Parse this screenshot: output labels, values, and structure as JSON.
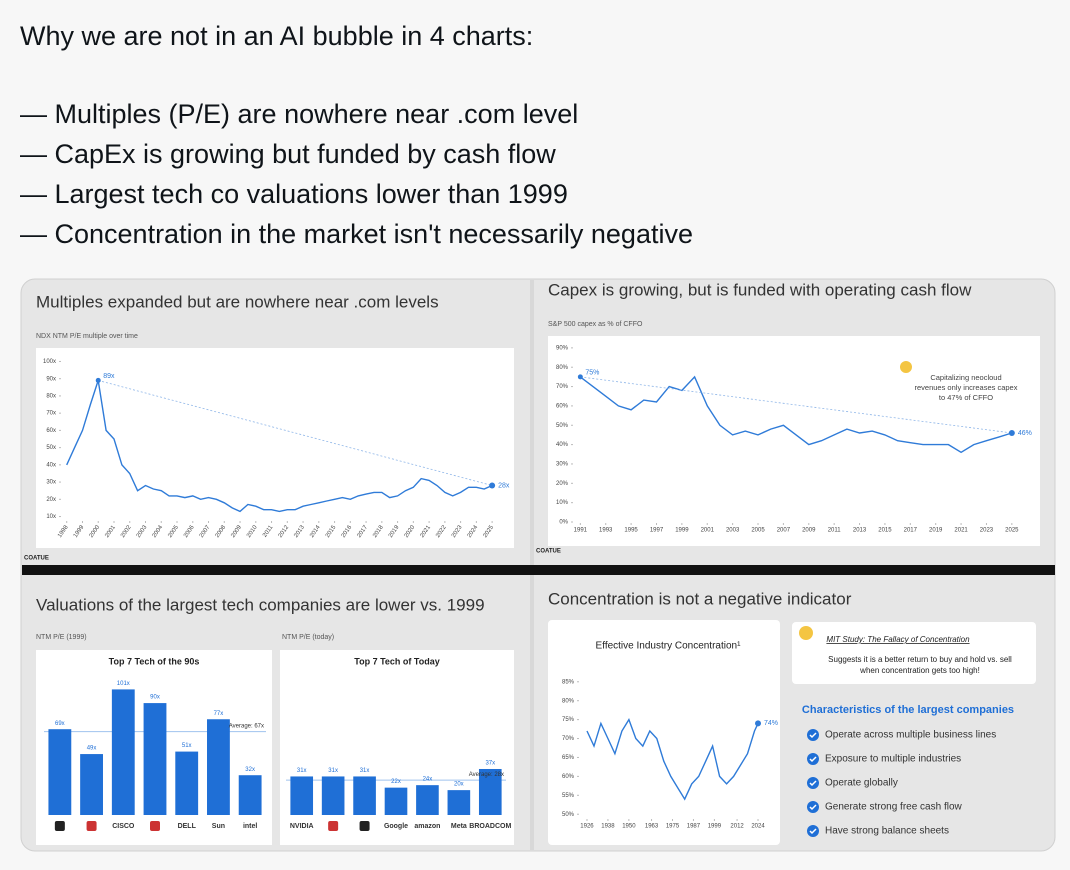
{
  "post": {
    "lines": [
      "Why we are not in an AI bubble in 4 charts:",
      "— Multiples (P/E) are nowhere near .com level",
      "— CapEx is growing but funded by cash flow",
      "— Largest tech co valuations lower than 1999",
      "— Concentration in the market isn't necessarily negative"
    ]
  },
  "chart_data": [
    {
      "type": "line",
      "title": "Multiples expanded but are nowhere near .com levels",
      "subtitle": "NDX NTM P/E multiple over time",
      "footer": "COATUE",
      "color": "#2f7bd8",
      "x": [
        1998,
        1998.5,
        1999,
        1999.5,
        2000,
        2000.5,
        2001,
        2001.5,
        2002,
        2002.5,
        2003,
        2003.5,
        2004,
        2004.5,
        2005,
        2005.5,
        2006,
        2006.5,
        2007,
        2007.5,
        2008,
        2008.5,
        2009,
        2009.5,
        2010,
        2010.5,
        2011,
        2011.5,
        2012,
        2012.5,
        2013,
        2013.5,
        2014,
        2014.5,
        2015,
        2015.5,
        2016,
        2016.5,
        2017,
        2017.5,
        2018,
        2018.5,
        2019,
        2019.5,
        2020,
        2020.5,
        2021,
        2021.5,
        2022,
        2022.5,
        2023,
        2023.5,
        2024,
        2024.5,
        2025
      ],
      "values": [
        40,
        50,
        60,
        75,
        89,
        60,
        55,
        40,
        35,
        25,
        28,
        26,
        25,
        22,
        22,
        21,
        22,
        20,
        21,
        20,
        18,
        15,
        13,
        17,
        16,
        14,
        14,
        13,
        14,
        14,
        16,
        17,
        18,
        19,
        20,
        21,
        20,
        22,
        23,
        24,
        24,
        21,
        22,
        25,
        27,
        32,
        31,
        28,
        24,
        22,
        24,
        27,
        27,
        26,
        28
      ],
      "peak_label": "89x",
      "end_label": "28x",
      "xlim": [
        1997.7,
        2025.5
      ],
      "xticks": [
        1998,
        1999,
        2000,
        2001,
        2002,
        2003,
        2004,
        2005,
        2006,
        2007,
        2008,
        2009,
        2010,
        2011,
        2012,
        2013,
        2014,
        2015,
        2016,
        2017,
        2018,
        2019,
        2020,
        2021,
        2022,
        2023,
        2024,
        2025
      ],
      "ylim": [
        8,
        102
      ],
      "yticks": [
        {
          "value": 10,
          "label": "10x"
        },
        {
          "value": 20,
          "label": "20x"
        },
        {
          "value": 30,
          "label": "30x"
        },
        {
          "value": 40,
          "label": "40x"
        },
        {
          "value": 50,
          "label": "50x"
        },
        {
          "value": 60,
          "label": "60x"
        },
        {
          "value": 70,
          "label": "70x"
        },
        {
          "value": 80,
          "label": "80x"
        },
        {
          "value": 90,
          "label": "90x"
        },
        {
          "value": 100,
          "label": "100x"
        }
      ]
    },
    {
      "type": "line",
      "title": "Capex is growing, but is funded with operating cash flow",
      "subtitle": "S&P 500 capex as % of CFFO",
      "footer": "COATUE",
      "color": "#2f7bd8",
      "x": [
        1991,
        1992,
        1993,
        1994,
        1995,
        1996,
        1997,
        1998,
        1999,
        2000,
        2001,
        2002,
        2003,
        2004,
        2005,
        2006,
        2007,
        2008,
        2009,
        2010,
        2011,
        2012,
        2013,
        2014,
        2015,
        2016,
        2017,
        2018,
        2019,
        2020,
        2021,
        2022,
        2023,
        2024,
        2025
      ],
      "values": [
        75,
        70,
        65,
        60,
        58,
        63,
        62,
        70,
        68,
        75,
        60,
        50,
        45,
        47,
        45,
        48,
        50,
        45,
        40,
        42,
        45,
        48,
        46,
        47,
        45,
        42,
        41,
        40,
        40,
        40,
        36,
        40,
        42,
        44,
        46
      ],
      "peak_label": "75%",
      "end_label": "46%",
      "callout": "Capitalizing neocloud revenues only increases capex to 47% of CFFO",
      "xlim": [
        1990.5,
        2025.8
      ],
      "xticks": [
        1991,
        1993,
        1995,
        1997,
        1999,
        2001,
        2003,
        2005,
        2007,
        2009,
        2011,
        2013,
        2015,
        2017,
        2019,
        2021,
        2023,
        2025
      ],
      "ylim": [
        0,
        92
      ],
      "yticks": [
        {
          "value": 0,
          "label": "0%"
        },
        {
          "value": 10,
          "label": "10%"
        },
        {
          "value": 20,
          "label": "20%"
        },
        {
          "value": 30,
          "label": "30%"
        },
        {
          "value": 40,
          "label": "40%"
        },
        {
          "value": 50,
          "label": "50%"
        },
        {
          "value": 60,
          "label": "60%"
        },
        {
          "value": 70,
          "label": "70%"
        },
        {
          "value": 80,
          "label": "80%"
        },
        {
          "value": 90,
          "label": "90%"
        }
      ]
    },
    {
      "type": "bar",
      "title": "Valuations of the largest tech companies are lower vs. 1999",
      "subtitle": "NTM P/E (1999)",
      "panel_title": "Top 7 Tech of the 90s",
      "color": "#1f6fd6",
      "categories": [
        null,
        null,
        "CISCO",
        null,
        "DELL",
        "Sun",
        "intel"
      ],
      "values": [
        69,
        49,
        101,
        90,
        51,
        77,
        32
      ],
      "value_labels": [
        "69x",
        "49x",
        "101x",
        "90x",
        "51x",
        "77x",
        "32x"
      ],
      "average": 67,
      "average_label": "Average: 67x",
      "ylim": [
        0,
        115
      ]
    },
    {
      "type": "bar",
      "subtitle": "NTM P/E (today)",
      "panel_title": "Top 7 Tech of Today",
      "color": "#1f6fd6",
      "categories": [
        "NVIDIA",
        null,
        null,
        "Google",
        "amazon",
        "Meta",
        "BROADCOM"
      ],
      "values": [
        31,
        31,
        31,
        22,
        24,
        20,
        37
      ],
      "value_labels": [
        "31x",
        "31x",
        "31x",
        "22x",
        "24x",
        "20x",
        "37x"
      ],
      "average": 28,
      "average_label": "Average: 28x",
      "ylim": [
        0,
        115
      ]
    },
    {
      "type": "line",
      "title": "Concentration is not a negative indicator",
      "subtitle": "Effective Industry Concentration¹",
      "color": "#2f7bd8",
      "x": [
        1926,
        1930,
        1934,
        1938,
        1942,
        1946,
        1950,
        1954,
        1958,
        1962,
        1966,
        1970,
        1974,
        1978,
        1982,
        1986,
        1990,
        1994,
        1998,
        2002,
        2006,
        2010,
        2014,
        2018,
        2022,
        2024
      ],
      "values": [
        72,
        68,
        74,
        70,
        66,
        72,
        75,
        70,
        68,
        72,
        70,
        64,
        60,
        57,
        54,
        58,
        60,
        64,
        68,
        60,
        58,
        60,
        63,
        66,
        72,
        74
      ],
      "end_label": "74%",
      "xlim": [
        1922,
        2028
      ],
      "xticks": [
        1926,
        1938,
        1950,
        1963,
        1975,
        1987,
        1999,
        2012,
        2024
      ],
      "ylim": [
        49,
        86
      ],
      "yticks": [
        {
          "value": 50,
          "label": "50%"
        },
        {
          "value": 55,
          "label": "55%"
        },
        {
          "value": 60,
          "label": "60%"
        },
        {
          "value": 65,
          "label": "65%"
        },
        {
          "value": 70,
          "label": "70%"
        },
        {
          "value": 75,
          "label": "75%"
        },
        {
          "value": 80,
          "label": "80%"
        },
        {
          "value": 85,
          "label": "85%"
        }
      ],
      "side": {
        "study": "MIT Study: The Fallacy of Concentration",
        "note": [
          "Suggests it is a better return to buy and hold vs. sell",
          "when concentration gets too high!"
        ],
        "heading": "Characteristics of the largest companies",
        "items": [
          "Operate across multiple business lines",
          "Exposure to multiple industries",
          "Operate globally",
          "Generate strong free cash flow",
          "Have strong balance sheets"
        ]
      }
    }
  ]
}
